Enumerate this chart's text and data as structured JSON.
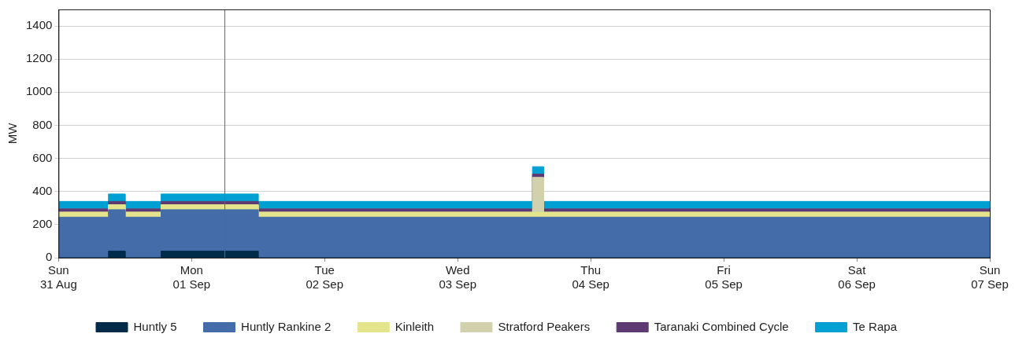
{
  "chart_data": {
    "type": "area",
    "stacked": true,
    "ylabel": "MW",
    "x": [
      "--08-31T00:00",
      "--08-31T09:00",
      "--08-31T09:00",
      "--08-31T12:00",
      "--08-31T12:00",
      "--08-31T18:30",
      "--08-31T18:30",
      "--09-01T12:00",
      "--09-01T12:00",
      "--09-03T13:30",
      "--09-03T13:30",
      "--09-03T15:30",
      "--09-03T15:30",
      "--09-07T00:00"
    ],
    "series": [
      {
        "name": "Huntly 5",
        "color": "#002b49",
        "values": [
          0,
          0,
          40,
          40,
          0,
          0,
          40,
          40,
          0,
          0,
          0,
          0,
          0,
          0
        ]
      },
      {
        "name": "Huntly Rankine 2",
        "color": "#436ca8",
        "values": [
          245,
          245,
          250,
          250,
          245,
          245,
          250,
          250,
          245,
          245,
          245,
          245,
          245,
          245
        ]
      },
      {
        "name": "Kinleith",
        "color": "#e3e48c",
        "values": [
          30,
          30,
          30,
          30,
          30,
          30,
          30,
          30,
          30,
          30,
          30,
          30,
          30,
          30
        ]
      },
      {
        "name": "Stratford Peakers",
        "color": "#d1d2ad",
        "values": [
          0,
          0,
          0,
          0,
          0,
          0,
          0,
          0,
          0,
          0,
          210,
          210,
          0,
          0
        ]
      },
      {
        "name": "Taranaki Combined Cycle",
        "color": "#5e3a72",
        "values": [
          20,
          20,
          20,
          20,
          20,
          20,
          20,
          20,
          20,
          20,
          20,
          20,
          20,
          20
        ]
      },
      {
        "name": "Te Rapa",
        "color": "#00a0d2",
        "values": [
          45,
          45,
          45,
          45,
          45,
          45,
          45,
          45,
          45,
          45,
          45,
          45,
          45,
          45
        ]
      }
    ],
    "xlim": [
      "--08-31",
      "--09-07"
    ],
    "xticks": [
      {
        "value": "--08-31",
        "label": "Sun\n31 Aug"
      },
      {
        "value": "--09-01",
        "label": "Mon\n01 Sep"
      },
      {
        "value": "--09-02",
        "label": "Tue\n02 Sep"
      },
      {
        "value": "--09-03",
        "label": "Wed\n03 Sep"
      },
      {
        "value": "--09-04",
        "label": "Thu\n04 Sep"
      },
      {
        "value": "--09-05",
        "label": "Fri\n05 Sep"
      },
      {
        "value": "--09-06",
        "label": "Sat\n06 Sep"
      },
      {
        "value": "--09-07",
        "label": "Sun\n07 Sep"
      }
    ],
    "ylim": [
      0,
      1500
    ],
    "yticks": [
      0,
      200,
      400,
      600,
      800,
      1000,
      1200,
      1400
    ],
    "ref_lines": [
      {
        "axis": "x",
        "value": "--09-01T06:00",
        "color": "#666666"
      }
    ],
    "grid": "y",
    "legend": "bottom"
  }
}
